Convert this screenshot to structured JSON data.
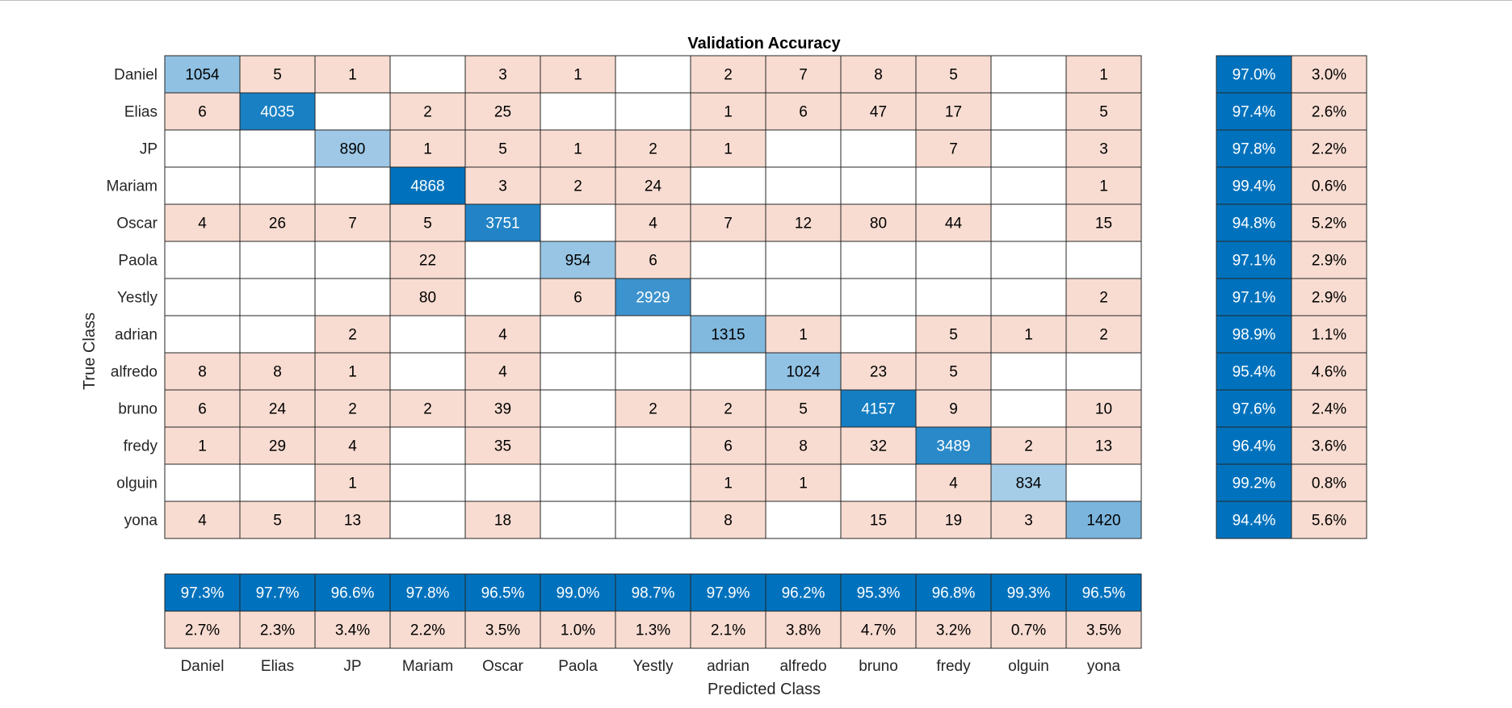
{
  "chart_data": {
    "type": "heatmap",
    "title": "Validation Accuracy",
    "xlabel": "Predicted Class",
    "ylabel": "True Class",
    "classes": [
      "Daniel",
      "Elias",
      "JP",
      "Mariam",
      "Oscar",
      "Paola",
      "Yestly",
      "adrian",
      "alfredo",
      "bruno",
      "fredy",
      "olguin",
      "yona"
    ],
    "matrix": [
      [
        1054,
        5,
        1,
        0,
        3,
        1,
        0,
        2,
        7,
        8,
        5,
        0,
        1
      ],
      [
        6,
        4035,
        0,
        2,
        25,
        0,
        0,
        1,
        6,
        47,
        17,
        0,
        5
      ],
      [
        0,
        0,
        890,
        1,
        5,
        1,
        2,
        1,
        0,
        0,
        7,
        0,
        3
      ],
      [
        0,
        0,
        0,
        4868,
        3,
        2,
        24,
        0,
        0,
        0,
        0,
        0,
        1
      ],
      [
        4,
        26,
        7,
        5,
        3751,
        0,
        4,
        7,
        12,
        80,
        44,
        0,
        15
      ],
      [
        0,
        0,
        0,
        22,
        0,
        954,
        6,
        0,
        0,
        0,
        0,
        0,
        0
      ],
      [
        0,
        0,
        0,
        80,
        0,
        6,
        2929,
        0,
        0,
        0,
        0,
        0,
        2
      ],
      [
        0,
        0,
        2,
        0,
        4,
        0,
        0,
        1315,
        1,
        0,
        5,
        1,
        2
      ],
      [
        8,
        8,
        1,
        0,
        4,
        0,
        0,
        0,
        1024,
        23,
        5,
        0,
        0
      ],
      [
        6,
        24,
        2,
        2,
        39,
        0,
        2,
        2,
        5,
        4157,
        9,
        0,
        10
      ],
      [
        1,
        29,
        4,
        0,
        35,
        0,
        0,
        6,
        8,
        32,
        3489,
        2,
        13
      ],
      [
        0,
        0,
        1,
        0,
        0,
        0,
        0,
        1,
        1,
        0,
        4,
        834,
        0
      ],
      [
        4,
        5,
        13,
        0,
        18,
        0,
        0,
        8,
        0,
        15,
        19,
        3,
        1420
      ]
    ],
    "row_summary": {
      "correct": [
        "97.0%",
        "97.4%",
        "97.8%",
        "99.4%",
        "94.8%",
        "97.1%",
        "97.1%",
        "98.9%",
        "95.4%",
        "97.6%",
        "96.4%",
        "99.2%",
        "94.4%"
      ],
      "incorrect": [
        "3.0%",
        "2.6%",
        "2.2%",
        "0.6%",
        "5.2%",
        "2.9%",
        "2.9%",
        "1.1%",
        "4.6%",
        "2.4%",
        "3.6%",
        "0.8%",
        "5.6%"
      ]
    },
    "column_summary": {
      "correct": [
        "97.3%",
        "97.7%",
        "96.6%",
        "97.8%",
        "96.5%",
        "99.0%",
        "98.7%",
        "97.9%",
        "96.2%",
        "95.3%",
        "96.8%",
        "99.3%",
        "96.5%"
      ],
      "incorrect": [
        "2.7%",
        "2.3%",
        "3.4%",
        "2.2%",
        "3.5%",
        "1.0%",
        "1.3%",
        "2.1%",
        "3.8%",
        "4.7%",
        "3.2%",
        "0.7%",
        "3.5%"
      ]
    },
    "colors": {
      "diagonal_high": "#0072bd",
      "diagonal_low": "#a6cde8",
      "off_diagonal": "#f8dcd1",
      "summary_correct": "#0072bd",
      "summary_incorrect": "#f8dcd1",
      "grid": "#262626"
    }
  }
}
